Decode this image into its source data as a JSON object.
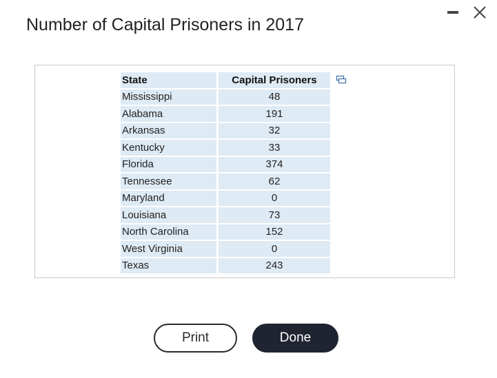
{
  "dialog": {
    "title": "Number of Capital Prisoners in 2017"
  },
  "window_controls": {
    "minimize_icon": "minimize-icon",
    "close_icon": "close-icon"
  },
  "table": {
    "headers": {
      "state": "State",
      "capital_prisoners": "Capital Prisoners"
    },
    "copy_icon": "copy-table-icon",
    "rows": [
      {
        "state": "Mississippi",
        "value": "48"
      },
      {
        "state": "Alabama",
        "value": "191"
      },
      {
        "state": "Arkansas",
        "value": "32"
      },
      {
        "state": "Kentucky",
        "value": "33"
      },
      {
        "state": "Florida",
        "value": "374"
      },
      {
        "state": "Tennessee",
        "value": "62"
      },
      {
        "state": "Maryland",
        "value": "0"
      },
      {
        "state": "Louisiana",
        "value": "73"
      },
      {
        "state": "North Carolina",
        "value": "152"
      },
      {
        "state": "West Virginia",
        "value": "0"
      },
      {
        "state": "Texas",
        "value": "243"
      }
    ]
  },
  "buttons": {
    "print_label": "Print",
    "done_label": "Done"
  },
  "colors": {
    "cell_bg": "#deeaf4",
    "done_bg": "#1f2430",
    "frame_border": "#c8c8c8"
  }
}
